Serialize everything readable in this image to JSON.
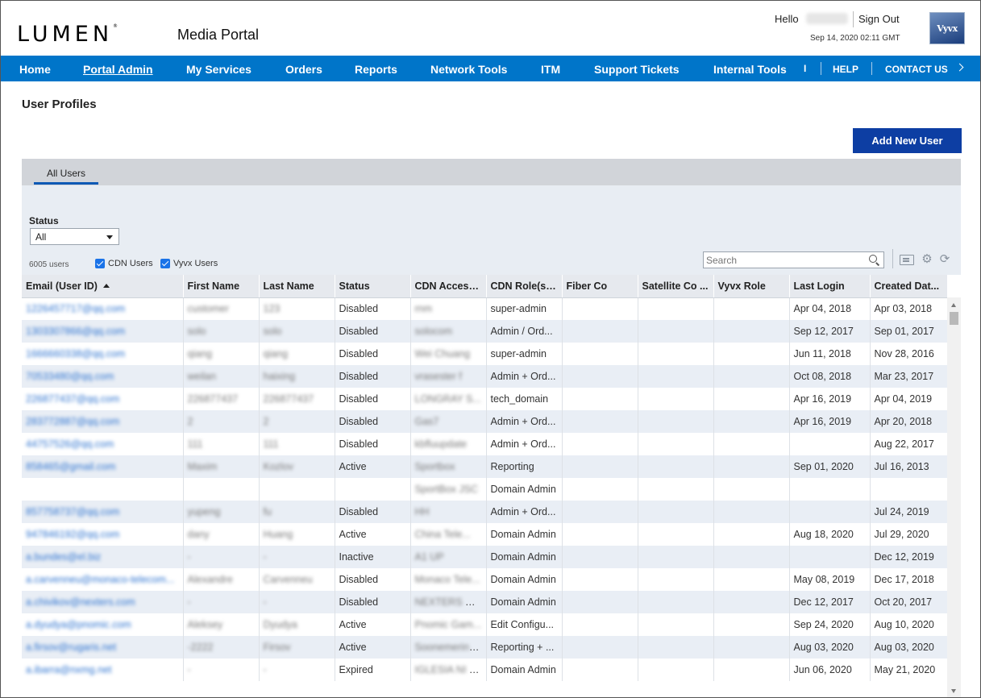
{
  "brand": {
    "logo_text": "LUMEN",
    "portal_title": "Media Portal",
    "partner_logo": "Vyvx"
  },
  "user": {
    "greeting": "Hello",
    "name": "Matthew",
    "sign_out": "Sign Out",
    "datetime": "Sep 14, 2020 02:11 GMT"
  },
  "nav": {
    "items": [
      "Home",
      "Portal Admin",
      "My Services",
      "Orders",
      "Reports",
      "Network Tools",
      "ITM",
      "Support Tickets",
      "Internal Tools"
    ],
    "active": "Portal Admin",
    "overflow": "I",
    "help": "HELP",
    "contact": "CONTACT US"
  },
  "page": {
    "title": "User Profiles",
    "add_button": "Add New User"
  },
  "tabs": [
    "All Users"
  ],
  "filters": {
    "status_label": "Status",
    "status_value": "All",
    "user_count": "6005 users",
    "cdn_users": "CDN Users",
    "vyvx_users": "Vyvx Users",
    "search_placeholder": "Search"
  },
  "icons": {
    "search": "search-icon",
    "export": "export-icon",
    "settings": "gear-icon",
    "refresh": "refresh-icon"
  },
  "table": {
    "columns": [
      "Email (User ID)",
      "First Name",
      "Last Name",
      "Status",
      "CDN Access...",
      "CDN Role(s)...",
      "Fiber Co",
      "Satellite Co ...",
      "Vyvx Role",
      "Last Login",
      "Created Dat..."
    ],
    "rows": [
      [
        "1226457717@qq.com",
        "customer",
        "123",
        "Disabled",
        "rnm",
        "super-admin",
        "",
        "",
        "",
        "Apr 04, 2018",
        "Apr 03, 2018"
      ],
      [
        "1303307866@qq.com",
        "solo",
        "solo",
        "Disabled",
        "solocom",
        "Admin / Ord...",
        "",
        "",
        "",
        "Sep 12, 2017",
        "Sep 01, 2017"
      ],
      [
        "1666660338@qq.com",
        "qiang",
        "qiang",
        "Disabled",
        "Wei Chuang",
        "super-admin",
        "",
        "",
        "",
        "Jun 11, 2018",
        "Nov 28, 2016"
      ],
      [
        "70533480@qq.com",
        "weilan",
        "haixing",
        "Disabled",
        "vrasester f",
        "Admin + Ord...",
        "",
        "",
        "",
        "Oct 08, 2018",
        "Mar 23, 2017"
      ],
      [
        "226877437@qq.com",
        "226877437",
        "226877437",
        "Disabled",
        "LONGRAY S...",
        "tech_domain",
        "",
        "",
        "",
        "Apr 16, 2019",
        "Apr 04, 2019"
      ],
      [
        "283772887@qq.com",
        "2",
        "2",
        "Disabled",
        "Gas7",
        "Admin + Ord...",
        "",
        "",
        "",
        "Apr 16, 2019",
        "Apr 20, 2018"
      ],
      [
        "44757526@qq.com",
        "111",
        "111",
        "Disabled",
        "kbfluupdate",
        "Admin + Ord...",
        "",
        "",
        "",
        "",
        "Aug 22, 2017"
      ],
      [
        "858465@gmail.com",
        "Maxim",
        "Kozlov",
        "Active",
        "Sportbox",
        "Reporting",
        "",
        "",
        "",
        "Sep 01, 2020",
        "Jul 16, 2013"
      ],
      [
        "",
        "",
        "",
        "",
        "SportBox JSC",
        "Domain Admin",
        "",
        "",
        "",
        "",
        ""
      ],
      [
        "857758737@qq.com",
        "yupeng",
        "fu",
        "Disabled",
        "HH",
        "Admin + Ord...",
        "",
        "",
        "",
        "",
        "Jul 24, 2019"
      ],
      [
        "947846192@qq.com",
        "dany",
        "Huang",
        "Active",
        "China Tele...",
        "Domain Admin",
        "",
        "",
        "",
        "Aug 18, 2020",
        "Jul 29, 2020"
      ],
      [
        "a.bundes@el.biz",
        "-",
        "-",
        "Inactive",
        "A1 UP",
        "Domain Admin",
        "",
        "",
        "",
        "",
        "Dec 12, 2019"
      ],
      [
        "a.carvenneu@monaco-telecom...",
        "Alexandre",
        "Carvenneu",
        "Disabled",
        "Monaco Tele...",
        "Domain Admin",
        "",
        "",
        "",
        "May 08, 2019",
        "Dec 17, 2018"
      ],
      [
        "a.chivikov@nexters.com",
        "-",
        "-",
        "Disabled",
        "NEXTERS GL...",
        "Domain Admin",
        "",
        "",
        "",
        "Dec 12, 2017",
        "Oct 20, 2017"
      ],
      [
        "a.dyudya@pnomic.com",
        "Aleksey",
        "Dyudya",
        "Active",
        "Pnomic Gam...",
        "Edit Configu...",
        "",
        "",
        "",
        "Sep 24, 2020",
        "Aug 10, 2020"
      ],
      [
        "a.firsov@rugaris.net",
        "-2222",
        "Firsov",
        "Active",
        "Soonemering...",
        "Reporting + ...",
        "",
        "",
        "",
        "Aug 03, 2020",
        "Aug 03, 2020"
      ],
      [
        "a.ibarra@nxmg.net",
        "-",
        "-",
        "Expired",
        "IGLESIA NI C...",
        "Domain Admin",
        "",
        "",
        "",
        "Jun 06, 2020",
        "May 21, 2020"
      ]
    ]
  }
}
